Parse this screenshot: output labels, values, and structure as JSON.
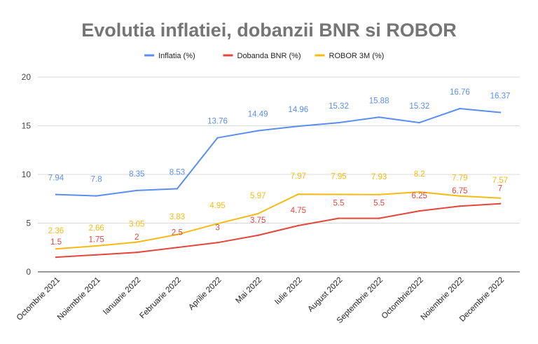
{
  "chart_data": {
    "type": "line",
    "title": "Evolutia inflatiei, dobanzii BNR si ROBOR",
    "xlabel": "",
    "ylabel": "",
    "ylim": [
      0,
      20
    ],
    "yticks": [
      0,
      5,
      10,
      15,
      20
    ],
    "grid": true,
    "legend_position": "top",
    "categories": [
      "Octombrie 2021",
      "Noiembrie 2021",
      "Ianuarie 2022",
      "Februarie 2022",
      "Aprilie 2022",
      "Mai 2022",
      "Iulie 2022",
      "August 2022",
      "Septembrie 2022",
      "Octombrie2022",
      "Noiembrie 2022",
      "Decembrie 2022"
    ],
    "series": [
      {
        "name": "Inflatia (%)",
        "color": "#5b8ef0",
        "values": [
          7.94,
          7.8,
          8.35,
          8.53,
          13.76,
          14.49,
          14.96,
          15.32,
          15.88,
          15.32,
          16.76,
          16.37
        ]
      },
      {
        "name": "Dobanda BNR (%)",
        "color": "#e5463c",
        "values": [
          1.5,
          1.75,
          2,
          2.5,
          3,
          3.75,
          4.75,
          5.5,
          5.5,
          6.25,
          6.75,
          7
        ]
      },
      {
        "name": "ROBOR 3M (%)",
        "color": "#f5bb13",
        "values": [
          2.36,
          2.66,
          3.05,
          3.83,
          4.95,
          5.97,
          7.97,
          7.95,
          7.93,
          8.2,
          7.79,
          7.57
        ]
      }
    ],
    "data_labels": [
      [
        "7.94",
        "7.8",
        "8.35",
        "8.53",
        "13.76",
        "14.49",
        "14.96",
        "15.32",
        "15.88",
        "15.32",
        "16.76",
        "16.37"
      ],
      [
        "1.5",
        "1.75",
        "2",
        "2.5",
        "3",
        "3.75",
        "4.75",
        "5.5",
        "5.5",
        "6.25",
        "6.75",
        "7"
      ],
      [
        "2.36",
        "2.66",
        "3.05",
        "3.83",
        "4.95",
        "5.97",
        "7.97",
        "7.95",
        "7.93",
        "8.2",
        "7.79",
        "7.57"
      ]
    ]
  }
}
